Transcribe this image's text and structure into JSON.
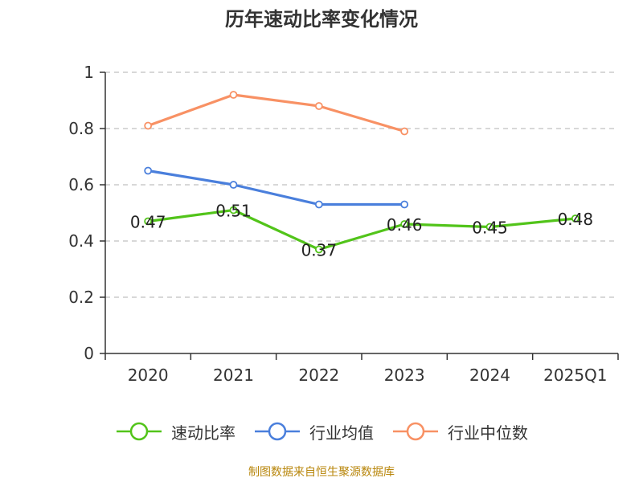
{
  "chart_data": {
    "type": "line",
    "title": "历年速动比率变化情况",
    "categories": [
      "2020",
      "2021",
      "2022",
      "2023",
      "2024",
      "2025Q1"
    ],
    "ylim": [
      0,
      1
    ],
    "yticks": [
      "0",
      "0.2",
      "0.4",
      "0.6",
      "0.8",
      "1"
    ],
    "grid": true,
    "legend_position": "bottom",
    "series": [
      {
        "name": "速动比率",
        "color": "#52c41a",
        "values": [
          0.47,
          0.51,
          0.37,
          0.46,
          0.45,
          0.48
        ],
        "labels": [
          "0.47",
          "0.51",
          "0.37",
          "0.46",
          "0.45",
          "0.48"
        ],
        "show_labels": true
      },
      {
        "name": "行业均值",
        "color": "#4a7fdc",
        "values": [
          0.65,
          0.6,
          0.53,
          0.53,
          null,
          null
        ],
        "show_labels": false
      },
      {
        "name": "行业中位数",
        "color": "#f89164",
        "values": [
          0.81,
          0.92,
          0.88,
          0.79,
          null,
          null
        ],
        "show_labels": false
      }
    ]
  },
  "source_note": "制图数据来自恒生聚源数据库"
}
